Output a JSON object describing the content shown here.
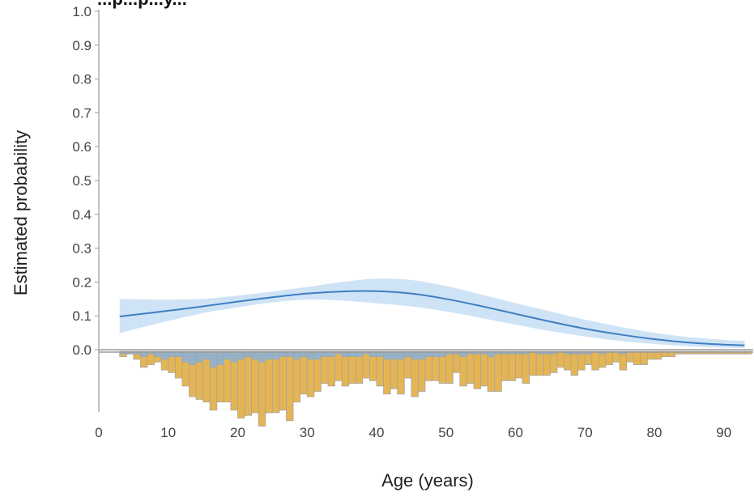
{
  "chart_data": {
    "type": "line",
    "title": "...p...p...y...",
    "xlabel": "Age (years)",
    "ylabel": "Estimated probability",
    "xlim": [
      0,
      94
    ],
    "ylim": [
      0,
      1.0
    ],
    "x_ticks": [
      "0",
      "10",
      "20",
      "30",
      "40",
      "50",
      "60",
      "70",
      "80",
      "90"
    ],
    "y_ticks": [
      "0.0",
      "0.1",
      "0.2",
      "0.3",
      "0.4",
      "0.5",
      "0.6",
      "0.7",
      "0.8",
      "0.9",
      "1.0"
    ],
    "grid": false,
    "series": [
      {
        "x": [
          3,
          5,
          10,
          15,
          20,
          25,
          30,
          35,
          40,
          45,
          50,
          55,
          60,
          65,
          70,
          75,
          80,
          85,
          90,
          93
        ],
        "y": [
          0.098,
          0.103,
          0.115,
          0.128,
          0.142,
          0.155,
          0.166,
          0.172,
          0.173,
          0.166,
          0.15,
          0.129,
          0.106,
          0.083,
          0.062,
          0.045,
          0.031,
          0.021,
          0.015,
          0.013
        ],
        "lower": [
          0.048,
          0.06,
          0.085,
          0.108,
          0.125,
          0.14,
          0.148,
          0.145,
          0.137,
          0.128,
          0.113,
          0.094,
          0.074,
          0.055,
          0.039,
          0.026,
          0.017,
          0.01,
          0.006,
          0.005
        ],
        "upper": [
          0.15,
          0.149,
          0.148,
          0.15,
          0.16,
          0.172,
          0.185,
          0.2,
          0.21,
          0.206,
          0.188,
          0.163,
          0.138,
          0.113,
          0.089,
          0.068,
          0.05,
          0.037,
          0.029,
          0.026
        ]
      }
    ],
    "histogram": {
      "bin_start": 3,
      "bin_width": 1,
      "case_counts": [
        1,
        1,
        1,
        2,
        1,
        2,
        3,
        2,
        2,
        4,
        5,
        4,
        3,
        6,
        5,
        3,
        4,
        3,
        2,
        3,
        4,
        3,
        3,
        2,
        2,
        3,
        2,
        3,
        3,
        2,
        2,
        1,
        2,
        2,
        2,
        1,
        2,
        2,
        3,
        3,
        3,
        2,
        3,
        3,
        2,
        2,
        2,
        1,
        1,
        2,
        1,
        1,
        1,
        2,
        1,
        1,
        1,
        1,
        1,
        0,
        1,
        1,
        1,
        0,
        1,
        1,
        1,
        1,
        0,
        1,
        0,
        0,
        1,
        0,
        0,
        0,
        0,
        0,
        0,
        0,
        0,
        0,
        0,
        0,
        0,
        0,
        0,
        0,
        0,
        0,
        0
      ],
      "noncase_counts": [
        1,
        0,
        2,
        4,
        4,
        2,
        4,
        6,
        8,
        9,
        12,
        14,
        16,
        16,
        14,
        16,
        18,
        22,
        22,
        20,
        24,
        20,
        20,
        20,
        24,
        16,
        14,
        14,
        12,
        10,
        11,
        10,
        11,
        10,
        10,
        9,
        9,
        11,
        13,
        11,
        13,
        8,
        14,
        12,
        9,
        9,
        10,
        11,
        7,
        11,
        11,
        13,
        12,
        13,
        14,
        10,
        10,
        9,
        11,
        9,
        8,
        8,
        7,
        6,
        6,
        8,
        6,
        4,
        7,
        5,
        5,
        4,
        6,
        4,
        5,
        5,
        3,
        3,
        2,
        2,
        1,
        1,
        1,
        1,
        1,
        1,
        1,
        1,
        1,
        1,
        1
      ]
    },
    "colors": {
      "line": "#3e7ec1",
      "band": "#cfe3f6",
      "hist_case": "#93b2c9",
      "hist_noncase": "#e5b553",
      "hist_edge": "#a5a5a5",
      "axis": "#9a9a9a"
    }
  }
}
